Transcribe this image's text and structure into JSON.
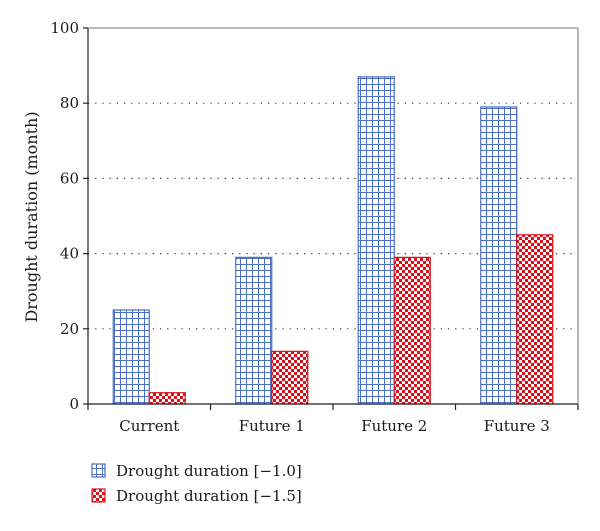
{
  "chart_data": {
    "type": "bar",
    "categories": [
      "Current",
      "Future 1",
      "Future 2",
      "Future 3"
    ],
    "series": [
      {
        "name": "Drought duration [−1.0]",
        "values": [
          25,
          39,
          87,
          79
        ],
        "color": "#4a6fc4",
        "pattern": "grid"
      },
      {
        "name": "Drought duration [−1.5]",
        "values": [
          3,
          14,
          39,
          45
        ],
        "color": "#d8101a",
        "pattern": "checker"
      }
    ],
    "title": "",
    "xlabel": "",
    "ylabel": "Drought duration (month)",
    "ylim": [
      0,
      100
    ],
    "yticks": [
      0,
      20,
      40,
      60,
      80,
      100
    ],
    "grid": "horizontal-dotted",
    "legend": "bottom-left"
  }
}
